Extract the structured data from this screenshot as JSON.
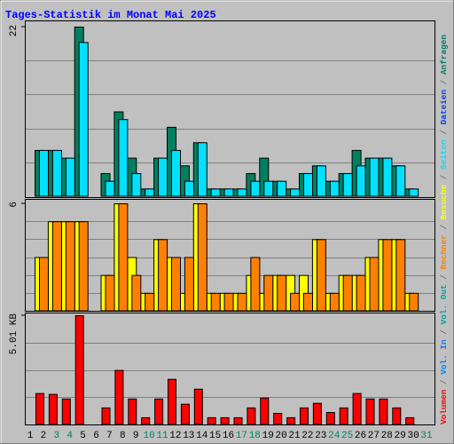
{
  "title": "Tages-Statistik im Monat Mai 2025",
  "legend": [
    {
      "name": "Volumen",
      "color": "#ff0000"
    },
    {
      "name": "Vol. In",
      "color": "#0080ff"
    },
    {
      "name": "Vol. Out",
      "color": "#00a0a0"
    },
    {
      "name": "Rechner",
      "color": "#ff8000"
    },
    {
      "name": "Besuche",
      "color": "#ffff00"
    },
    {
      "name": "Seiten",
      "color": "#00e0ff"
    },
    {
      "name": "Dateien",
      "color": "#0040ff"
    },
    {
      "name": "Anfragen",
      "color": "#008060"
    }
  ],
  "chart_data": [
    {
      "type": "bar",
      "ylim": [
        0,
        22
      ],
      "yticks": [
        22
      ],
      "series": [
        {
          "name": "Anfragen",
          "color": "#008060",
          "values": [
            6,
            6,
            5,
            22,
            0,
            3,
            11,
            5,
            1,
            5,
            9,
            4,
            7,
            1,
            1,
            1,
            3,
            5,
            2,
            1,
            3,
            4,
            2,
            3,
            6,
            5,
            5,
            4,
            1,
            0,
            0
          ]
        },
        {
          "name": "Seiten",
          "color": "#00e0ff",
          "values": [
            6,
            6,
            5,
            20,
            0,
            2,
            10,
            3,
            1,
            5,
            6,
            2,
            7,
            1,
            1,
            1,
            2,
            2,
            2,
            1,
            3,
            4,
            2,
            3,
            4,
            5,
            5,
            4,
            1,
            0,
            0
          ]
        }
      ]
    },
    {
      "type": "bar",
      "ylim": [
        0,
        6
      ],
      "yticks": [
        6
      ],
      "series": [
        {
          "name": "Besuche",
          "color": "#ffff00",
          "values": [
            3,
            5,
            5,
            5,
            0,
            2,
            6,
            3,
            1,
            4,
            3,
            1,
            6,
            1,
            1,
            1,
            2,
            1,
            2,
            2,
            2,
            4,
            1,
            2,
            2,
            3,
            4,
            4,
            1,
            0,
            0
          ]
        },
        {
          "name": "Rechner",
          "color": "#ff8000",
          "values": [
            3,
            5,
            5,
            5,
            0,
            2,
            6,
            2,
            1,
            4,
            3,
            3,
            6,
            1,
            1,
            1,
            3,
            2,
            2,
            1,
            1,
            4,
            1,
            2,
            2,
            3,
            4,
            4,
            1,
            0,
            0
          ]
        }
      ]
    },
    {
      "type": "bar",
      "ylim": [
        0,
        5.01
      ],
      "yticks": [
        {
          "value": 5.01,
          "label": "5.01 KB"
        }
      ],
      "categories": [
        "1",
        "2",
        "3",
        "4",
        "5",
        "6",
        "7",
        "8",
        "9",
        "10",
        "11",
        "12",
        "13",
        "14",
        "15",
        "16",
        "17",
        "18",
        "19",
        "20",
        "21",
        "22",
        "23",
        "24",
        "25",
        "26",
        "27",
        "28",
        "29",
        "30",
        "31"
      ],
      "category_colors": [
        "#000000",
        "#000000",
        "#008060",
        "#008060",
        "#000000",
        "#000000",
        "#000000",
        "#000000",
        "#000000",
        "#008060",
        "#008060",
        "#000000",
        "#000000",
        "#000000",
        "#000000",
        "#000000",
        "#008060",
        "#008060",
        "#000000",
        "#000000",
        "#000000",
        "#000000",
        "#000000",
        "#008060",
        "#008060",
        "#000000",
        "#000000",
        "#000000",
        "#000000",
        "#000000",
        "#008060"
      ],
      "series": [
        {
          "name": "Volumen",
          "color": "#ff0000",
          "values": [
            1.44,
            1.4,
            1.19,
            5.01,
            0,
            0.78,
            2.5,
            1.19,
            0.33,
            1.19,
            2.09,
            0.95,
            1.64,
            0.33,
            0.33,
            0.33,
            0.78,
            1.23,
            0.53,
            0.33,
            0.78,
            0.99,
            0.57,
            0.78,
            1.44,
            1.19,
            1.19,
            0.78,
            0.33,
            0,
            0
          ]
        }
      ]
    }
  ]
}
